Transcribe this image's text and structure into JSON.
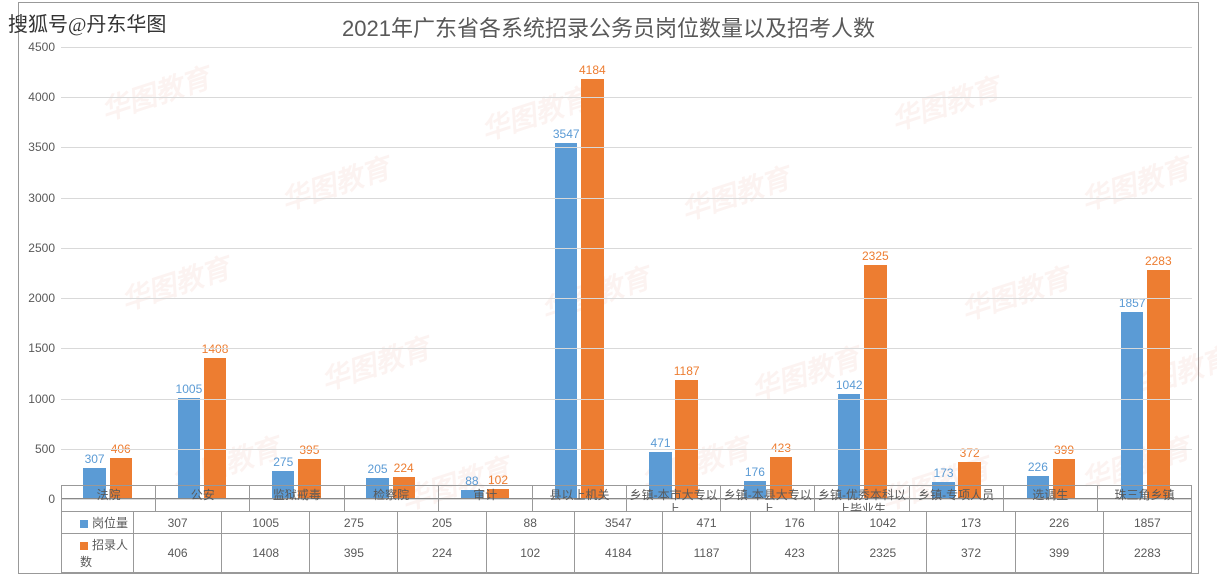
{
  "watermark_tag": "搜狐号@丹东华图",
  "bg_watermark_text": "华图教育",
  "chart": {
    "type": "bar",
    "title": "2021年广东省各系统招录公务员岗位数量以及招考人数",
    "title_fontsize": 22,
    "title_color": "#595959",
    "background_color": "#ffffff",
    "grid_color": "#d9d9d9",
    "axis_color": "#888888",
    "label_fontsize": 12,
    "categories": [
      "法院",
      "公安",
      "监狱戒毒",
      "检察院",
      "审计",
      "县以上机关",
      "乡镇-本市大专以上",
      "乡镇-本县大专以上",
      "乡镇-优秀本科以上毕业生",
      "乡镇-专项人员",
      "选调生",
      "珠三角乡镇"
    ],
    "series": [
      {
        "name": "岗位量",
        "color": "#5b9bd5",
        "values": [
          307,
          1005,
          275,
          205,
          88,
          3547,
          471,
          176,
          1042,
          173,
          226,
          1857
        ]
      },
      {
        "name": "招录人数",
        "color": "#ed7d31",
        "values": [
          406,
          1408,
          395,
          224,
          102,
          4184,
          1187,
          423,
          2325,
          372,
          399,
          2283
        ]
      }
    ],
    "ylim": [
      0,
      4500
    ],
    "ytick_step": 500,
    "bar_width": 0.24
  }
}
